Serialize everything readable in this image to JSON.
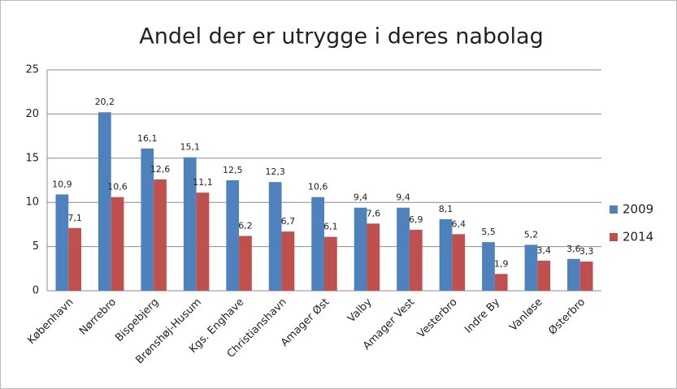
{
  "chart_data": {
    "type": "bar",
    "title": "Andel der er utrygge i deres nabolag",
    "categories": [
      "København",
      "Nørrebro",
      "Bispebjerg",
      "Brønshøj-Husum",
      "Kgs. Enghave",
      "Christianshavn",
      "Amager Øst",
      "Valby",
      "Amager Vest",
      "Vesterbro",
      "Indre By",
      "Vanløse",
      "Østerbro"
    ],
    "series": [
      {
        "name": "2009",
        "color": "#4f81bd",
        "values": [
          10.9,
          20.2,
          16.1,
          15.1,
          12.5,
          12.3,
          10.6,
          9.4,
          9.4,
          8.1,
          5.5,
          5.2,
          3.6
        ],
        "value_labels": [
          "10,9",
          "20,2",
          "16,1",
          "15,1",
          "12,5",
          "12,3",
          "10,6",
          "9,4",
          "9,4",
          "8,1",
          "5,5",
          "5,2",
          "3,6"
        ]
      },
      {
        "name": "2014",
        "color": "#c0504d",
        "values": [
          7.1,
          10.6,
          12.6,
          11.1,
          6.2,
          6.7,
          6.1,
          7.6,
          6.9,
          6.4,
          1.9,
          3.4,
          3.3
        ],
        "value_labels": [
          "7,1",
          "10,6",
          "12,6",
          "11,1",
          "6,2",
          "6,7",
          "6,1",
          "7,6",
          "6,9",
          "6,4",
          "1,9",
          "3,4",
          "3,3"
        ]
      }
    ],
    "ylim": [
      0,
      25
    ],
    "yticks": [
      0,
      5,
      10,
      15,
      20,
      25
    ],
    "grid": true,
    "legend": "right"
  }
}
